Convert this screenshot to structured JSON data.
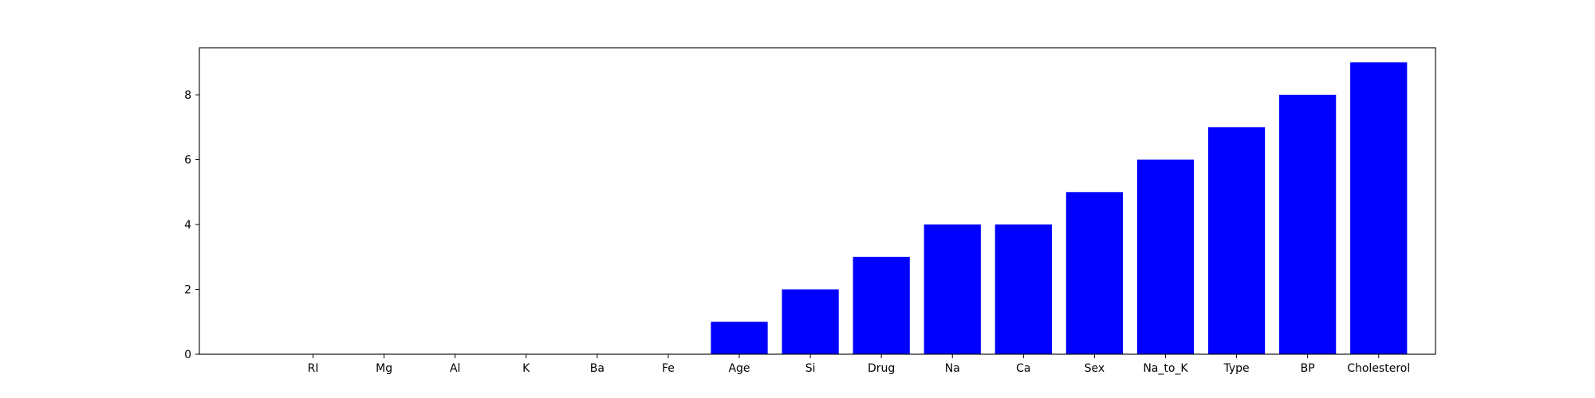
{
  "chart_data": {
    "type": "bar",
    "title": "",
    "xlabel": "",
    "ylabel": "",
    "categories": [
      "RI",
      "Mg",
      "Al",
      "K",
      "Ba",
      "Fe",
      "Age",
      "Si",
      "Drug",
      "Na",
      "Ca",
      "Sex",
      "Na_to_K",
      "Type",
      "BP",
      "Cholesterol"
    ],
    "values": [
      0,
      0,
      0,
      0,
      0,
      0,
      1,
      2,
      3,
      4,
      4,
      5,
      6,
      7,
      8,
      9
    ],
    "ylim": [
      0,
      9.45
    ],
    "yticks": [
      0,
      2,
      4,
      6,
      8
    ],
    "ytick_labels": [
      "0",
      "2",
      "4",
      "6",
      "8"
    ],
    "grid": false,
    "legend": "none",
    "bar_color": "#0000ff"
  }
}
